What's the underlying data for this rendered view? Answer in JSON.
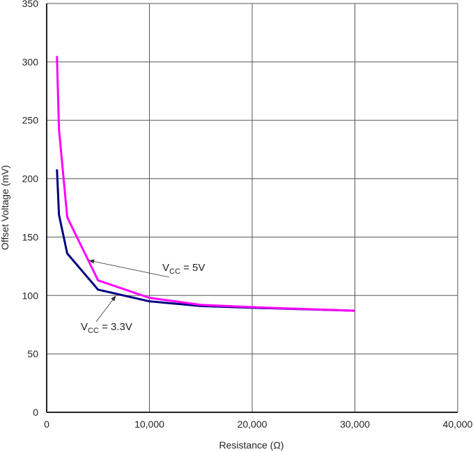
{
  "chart_data": {
    "type": "line",
    "title": "",
    "xlabel": "Resistance (Ω)",
    "ylabel": "Offset Voltage (mV)",
    "xlim": [
      0,
      40000
    ],
    "ylim": [
      0,
      350
    ],
    "x_ticks": [
      "0",
      "10,000",
      "20,000",
      "30,000",
      "40,000"
    ],
    "y_ticks": [
      "0",
      "50",
      "100",
      "150",
      "200",
      "250",
      "300",
      "350"
    ],
    "grid": true,
    "series": [
      {
        "name": "VCC = 5V",
        "color": "#ff00ff",
        "x": [
          1000,
          1200,
          2000,
          5000,
          10000,
          15000,
          20000,
          30000
        ],
        "y": [
          305,
          242,
          167,
          113,
          98,
          92,
          90,
          87
        ]
      },
      {
        "name": "VCC = 3.3V",
        "color": "#000080",
        "x": [
          1000,
          1200,
          2000,
          5000,
          10000,
          15000,
          20000,
          30000
        ],
        "y": [
          208,
          169,
          136,
          105,
          95,
          91,
          89.5,
          87
        ]
      }
    ],
    "annotations": [
      {
        "prefix": "V",
        "sub": "CC",
        "suffix": " = 5V"
      },
      {
        "prefix": "V",
        "sub": "CC",
        "suffix": " = 3.3V"
      }
    ]
  }
}
